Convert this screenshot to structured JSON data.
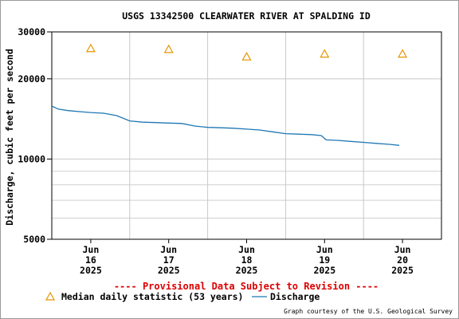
{
  "chart_data": {
    "type": "line",
    "title": "USGS 13342500 CLEARWATER RIVER AT SPALDING ID",
    "ylabel": "Discharge, cubic feet per second",
    "y_scale": "log",
    "ylim": [
      5000,
      30000
    ],
    "y_ticks": [
      {
        "value": 5000,
        "label": "5000"
      },
      {
        "value": 10000,
        "label": "10000"
      },
      {
        "value": 20000,
        "label": "20000"
      },
      {
        "value": 30000,
        "label": "30000"
      }
    ],
    "y_minor_gridlines": [
      6000,
      7000,
      8000,
      9000
    ],
    "xlim": [
      "2025-06-15 12:00",
      "2025-06-20 12:00"
    ],
    "x_ticks": [
      {
        "day": 1,
        "lines": [
          "Jun",
          "16",
          "2025"
        ]
      },
      {
        "day": 2,
        "lines": [
          "Jun",
          "17",
          "2025"
        ]
      },
      {
        "day": 3,
        "lines": [
          "Jun",
          "18",
          "2025"
        ]
      },
      {
        "day": 4,
        "lines": [
          "Jun",
          "19",
          "2025"
        ]
      },
      {
        "day": 5,
        "lines": [
          "Jun",
          "20",
          "2025"
        ]
      }
    ],
    "grid": true,
    "series": [
      {
        "name": "Discharge",
        "color": "#1f77b4",
        "points": [
          [
            "2025-06-15 12:00",
            15800
          ],
          [
            "2025-06-15 14:00",
            15400
          ],
          [
            "2025-06-15 17:00",
            15200
          ],
          [
            "2025-06-15 21:00",
            15050
          ],
          [
            "2025-06-16 00:00",
            14950
          ],
          [
            "2025-06-16 04:00",
            14850
          ],
          [
            "2025-06-16 08:00",
            14550
          ],
          [
            "2025-06-16 12:00",
            13900
          ],
          [
            "2025-06-16 16:00",
            13750
          ],
          [
            "2025-06-16 20:00",
            13700
          ],
          [
            "2025-06-17 00:00",
            13650
          ],
          [
            "2025-06-17 04:00",
            13600
          ],
          [
            "2025-06-17 08:00",
            13300
          ],
          [
            "2025-06-17 12:00",
            13150
          ],
          [
            "2025-06-17 16:00",
            13100
          ],
          [
            "2025-06-17 20:00",
            13050
          ],
          [
            "2025-06-18 00:00",
            12950
          ],
          [
            "2025-06-18 04:00",
            12850
          ],
          [
            "2025-06-18 08:00",
            12650
          ],
          [
            "2025-06-18 12:00",
            12450
          ],
          [
            "2025-06-18 16:00",
            12400
          ],
          [
            "2025-06-18 20:00",
            12350
          ],
          [
            "2025-06-18 23:00",
            12250
          ],
          [
            "2025-06-19 00:30",
            11800
          ],
          [
            "2025-06-19 04:00",
            11750
          ],
          [
            "2025-06-19 08:00",
            11650
          ],
          [
            "2025-06-19 12:00",
            11550
          ],
          [
            "2025-06-19 16:00",
            11450
          ],
          [
            "2025-06-19 20:00",
            11350
          ],
          [
            "2025-06-19 23:00",
            11250
          ]
        ]
      },
      {
        "name": "Median daily statistic (53 years)",
        "color": "#e69500",
        "marker": "triangle",
        "points": [
          [
            "2025-06-16 00:00",
            26000
          ],
          [
            "2025-06-17 00:00",
            25800
          ],
          [
            "2025-06-18 00:00",
            24200
          ],
          [
            "2025-06-19 00:00",
            24800
          ],
          [
            "2025-06-20 00:00",
            24800
          ]
        ]
      }
    ],
    "legend": {
      "placement": "bottom",
      "provisional_note": "---- Provisional Data Subject to Revision ----",
      "items": [
        "Median daily statistic (53 years)",
        "Discharge"
      ]
    },
    "credit": "Graph courtesy of the U.S. Geological Survey"
  }
}
